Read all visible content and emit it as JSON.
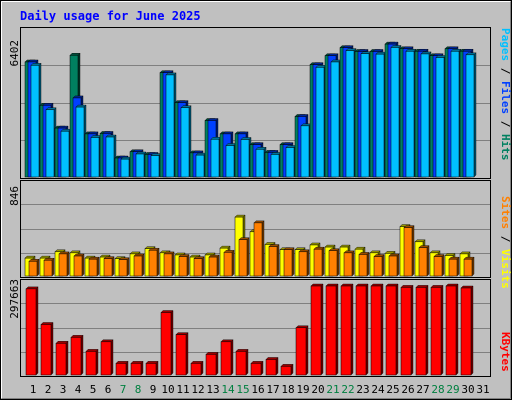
{
  "chart_data": {
    "type": "bar",
    "title": "Daily usage for June 2025",
    "days": [
      "1",
      "2",
      "3",
      "4",
      "5",
      "6",
      "7",
      "8",
      "9",
      "10",
      "11",
      "12",
      "13",
      "14",
      "15",
      "16",
      "17",
      "18",
      "19",
      "20",
      "21",
      "22",
      "23",
      "24",
      "25",
      "26",
      "27",
      "28",
      "29",
      "30",
      "31"
    ],
    "weekend_days": [
      "7",
      "8",
      "14",
      "15",
      "21",
      "22",
      "28",
      "29"
    ],
    "panels": [
      {
        "id": "top",
        "max_label": "6402",
        "legend": [
          {
            "text": "Pages",
            "color": "#00c0ff"
          },
          {
            "text": " / ",
            "color": "#000000"
          },
          {
            "text": "Files",
            "color": "#0040ff"
          },
          {
            "text": " / ",
            "color": "#000000"
          },
          {
            "text": "Hits",
            "color": "#008060"
          }
        ],
        "ymax": 6402,
        "series": [
          {
            "key": "hits",
            "color": "#008060",
            "values": [
              5150,
              3210,
              2190,
              5450,
              1930,
              1950,
              850,
              1130,
              1010,
              4670,
              3330,
              1080,
              2530,
              1930,
              1930,
              1450,
              1100,
              1450,
              2710,
              5030,
              5430,
              5790,
              5620,
              5620,
              5950,
              5740,
              5630,
              5430,
              5740,
              5630,
              null
            ]
          },
          {
            "key": "files",
            "color": "#0040ff",
            "values": [
              5150,
              3210,
              2190,
              3540,
              1930,
              1950,
              850,
              1130,
              1010,
              4670,
              3330,
              1080,
              2530,
              1930,
              1930,
              1450,
              1100,
              1450,
              2710,
              5030,
              5430,
              5790,
              5620,
              5620,
              5950,
              5740,
              5630,
              5430,
              5740,
              5630,
              null
            ]
          },
          {
            "key": "pages",
            "color": "#00c0ff",
            "values": [
              5000,
              3010,
              2050,
              3130,
              1770,
              1790,
              800,
              1030,
              960,
              4570,
              3100,
              980,
              1690,
              1410,
              1680,
              1240,
              1010,
              1320,
              2290,
              4910,
              5150,
              5660,
              5520,
              5500,
              5800,
              5630,
              5510,
              5350,
              5630,
              5470,
              null
            ]
          }
        ]
      },
      {
        "id": "mid",
        "max_label": "846",
        "legend": [
          {
            "text": "Sites",
            "color": "#ff8000"
          },
          {
            "text": " / ",
            "color": "#000000"
          },
          {
            "text": "Visits",
            "color": "#ffff00"
          }
        ],
        "ymax": 846,
        "series": [
          {
            "key": "visits",
            "color": "#ffff00",
            "values": [
              170,
              170,
              230,
              220,
              170,
              180,
              165,
              210,
              260,
              220,
              200,
              180,
              200,
              265,
              560,
              420,
              300,
              250,
              250,
              295,
              275,
              275,
              255,
              220,
              215,
              470,
              325,
              220,
              195,
              210,
              null
            ]
          },
          {
            "key": "sites",
            "color": "#ff8000",
            "values": [
              140,
              150,
              210,
              190,
              160,
              165,
              155,
              190,
              245,
              210,
              185,
              165,
              180,
              225,
              345,
              505,
              280,
              250,
              230,
              255,
              240,
              220,
              205,
              185,
              190,
              460,
              270,
              185,
              160,
              160,
              null
            ]
          }
        ]
      },
      {
        "id": "bot",
        "max_label": "297663",
        "legend": [
          {
            "text": "KBytes",
            "color": "#ff0000"
          }
        ],
        "ymax": 297663,
        "series": [
          {
            "key": "kbytes",
            "color": "#ff0000",
            "values": [
              288000,
              169000,
              106000,
              126000,
              79000,
              111000,
              39000,
              39000,
              39000,
              209000,
              135000,
              39000,
              69000,
              111000,
              79000,
              39000,
              52000,
              29000,
              158000,
              297663,
              297663,
              297663,
              297663,
              297663,
              297663,
              293000,
              293000,
              293000,
              297663,
              291000,
              null
            ]
          }
        ]
      }
    ]
  }
}
